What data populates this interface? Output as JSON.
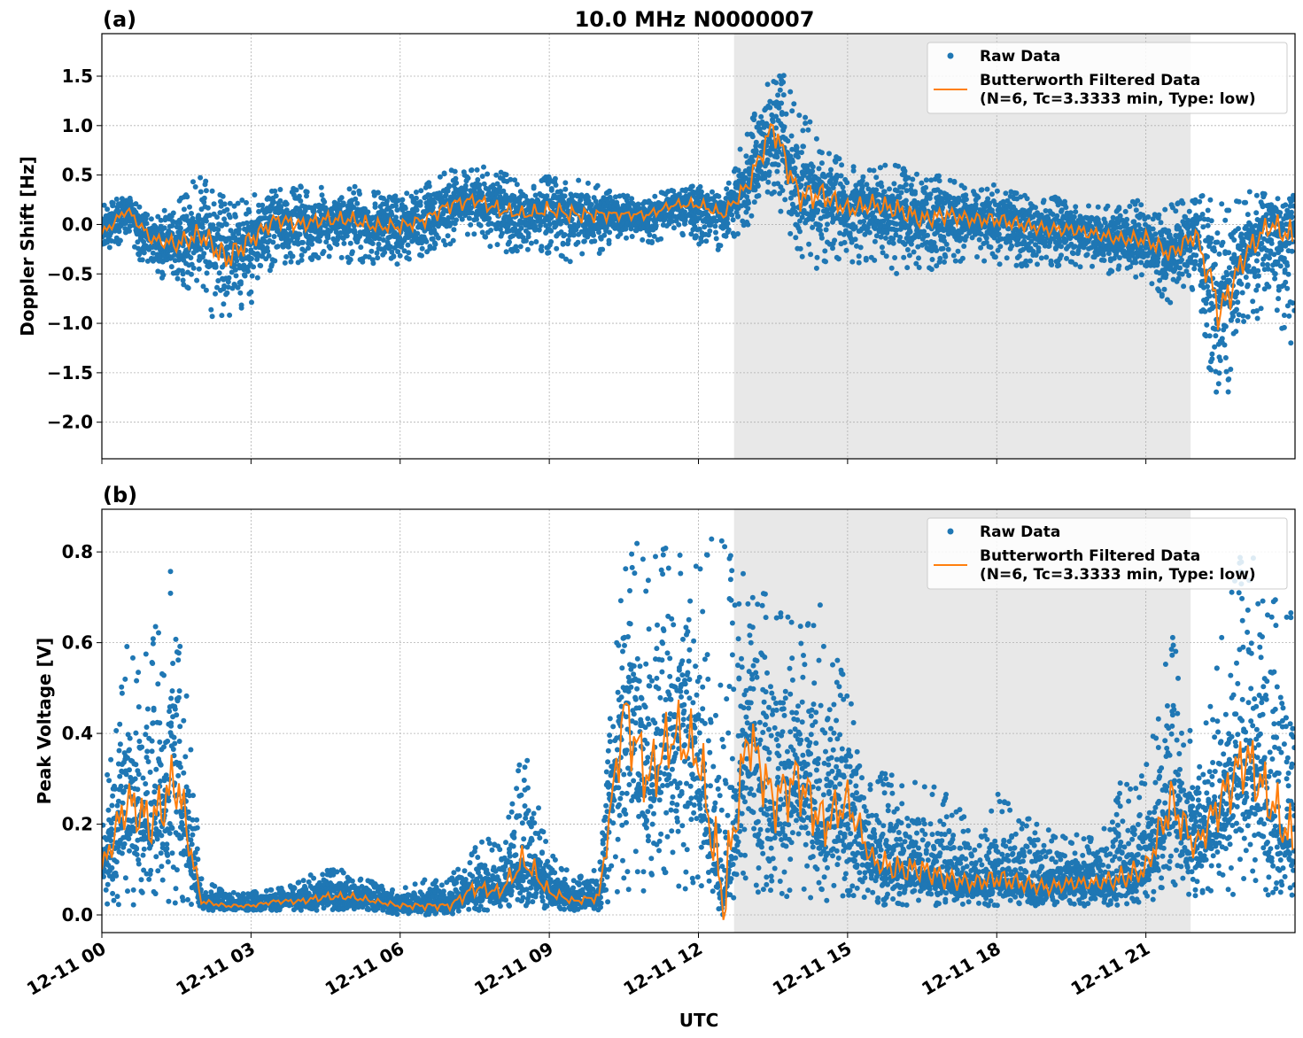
{
  "chart_data": [
    {
      "type": "scatter",
      "panel_label": "(a)",
      "title": "10.0 MHz N0000007",
      "xlabel": "",
      "ylabel": "Doppler Shift [Hz]",
      "ylim": [
        -2.37,
        1.93
      ],
      "xlim": [
        "12-11 00:00",
        "12-12 00:00"
      ],
      "yticks": [
        "1.5",
        "1.0",
        "0.5",
        "0.0",
        "−0.5",
        "−1.0",
        "−1.5",
        "−2.0"
      ],
      "ytick_values": [
        1.5,
        1.0,
        0.5,
        0.0,
        -0.5,
        -1.0,
        -1.5,
        -2.0
      ],
      "grid": true,
      "legend_position": "top-right",
      "shaded_interval": [
        "12-11 12:43",
        "12-11 21:54"
      ],
      "shade_color": "#e8e8e8",
      "legend": [
        "Raw Data",
        "Butterworth Filtered Data",
        "(N=6, Tc=3.3333 min, Type: low)"
      ],
      "x_hours": [
        0,
        0.5,
        1,
        1.5,
        2,
        2.5,
        3,
        3.5,
        4,
        4.5,
        5,
        5.5,
        6,
        6.5,
        7,
        7.5,
        8,
        8.5,
        9,
        9.5,
        10,
        10.5,
        11,
        11.5,
        12,
        12.5,
        13,
        13.5,
        14,
        14.5,
        15,
        15.5,
        16,
        16.5,
        17,
        17.5,
        18,
        18.5,
        19,
        19.5,
        20,
        20.5,
        21,
        21.5,
        22,
        22.5,
        23,
        23.5,
        24
      ],
      "series": [
        {
          "name": "Butterworth Filtered Data",
          "color": "#ff7f0e",
          "values": [
            -0.1,
            0.15,
            -0.15,
            -0.2,
            -0.1,
            -0.35,
            -0.15,
            0.05,
            0.0,
            0.05,
            0.05,
            -0.02,
            -0.02,
            0.05,
            0.2,
            0.25,
            0.15,
            0.1,
            0.15,
            0.1,
            0.1,
            0.1,
            0.1,
            0.2,
            0.2,
            0.1,
            0.4,
            1.0,
            0.3,
            0.3,
            0.15,
            0.2,
            0.15,
            0.05,
            0.1,
            0.05,
            0.05,
            0.0,
            -0.05,
            -0.05,
            -0.1,
            -0.15,
            -0.15,
            -0.3,
            -0.1,
            -0.9,
            -0.3,
            0.0,
            -0.15
          ]
        },
        {
          "name": "Raw Data",
          "color": "#1f77b4",
          "min": [
            -0.35,
            -0.2,
            -0.5,
            -0.6,
            -0.8,
            -1.1,
            -0.8,
            -0.4,
            -0.4,
            -0.35,
            -0.4,
            -0.4,
            -0.45,
            -0.3,
            -0.2,
            -0.1,
            -0.3,
            -0.3,
            -0.3,
            -0.4,
            -0.3,
            -0.15,
            -0.2,
            -0.1,
            -0.2,
            -0.3,
            0.0,
            0.3,
            -0.3,
            -0.5,
            -0.4,
            -0.4,
            -0.5,
            -0.5,
            -0.4,
            -0.35,
            -0.4,
            -0.45,
            -0.45,
            -0.4,
            -0.5,
            -0.5,
            -0.6,
            -0.8,
            -0.7,
            -2.1,
            -1.0,
            -0.9,
            -1.3
          ],
          "max": [
            0.2,
            0.3,
            0.1,
            0.3,
            0.5,
            0.3,
            0.3,
            0.4,
            0.4,
            0.4,
            0.4,
            0.35,
            0.3,
            0.4,
            0.6,
            0.6,
            0.55,
            0.4,
            0.5,
            0.5,
            0.4,
            0.3,
            0.3,
            0.35,
            0.4,
            0.3,
            1.0,
            1.7,
            1.3,
            0.8,
            0.6,
            0.6,
            0.6,
            0.5,
            0.5,
            0.4,
            0.4,
            0.3,
            0.3,
            0.25,
            0.2,
            0.2,
            0.3,
            0.2,
            0.3,
            0.3,
            0.35,
            0.35,
            0.3
          ]
        }
      ]
    },
    {
      "type": "scatter",
      "panel_label": "(b)",
      "title": "",
      "xlabel": "UTC",
      "ylabel": "Peak Voltage [V]",
      "ylim": [
        -0.039,
        0.894
      ],
      "xlim": [
        "12-11 00:00",
        "12-12 00:00"
      ],
      "yticks": [
        "0.8",
        "0.6",
        "0.4",
        "0.2",
        "0.0"
      ],
      "ytick_values": [
        0.8,
        0.6,
        0.4,
        0.2,
        0.0
      ],
      "xticks": [
        "12-11 00",
        "12-11 03",
        "12-11 06",
        "12-11 09",
        "12-11 12",
        "12-11 15",
        "12-11 18",
        "12-11 21"
      ],
      "xtick_hours": [
        0,
        3,
        6,
        9,
        12,
        15,
        18,
        21
      ],
      "grid": true,
      "legend_position": "top-right",
      "shaded_interval": [
        "12-11 12:43",
        "12-11 21:54"
      ],
      "shade_color": "#e8e8e8",
      "legend": [
        "Raw Data",
        "Butterworth Filtered Data",
        "(N=6, Tc=3.3333 min, Type: low)"
      ],
      "x_hours": [
        0,
        0.5,
        1,
        1.5,
        2,
        2.5,
        3,
        3.5,
        4,
        4.5,
        5,
        5.5,
        6,
        6.5,
        7,
        7.5,
        8,
        8.5,
        9,
        9.5,
        10,
        10.5,
        11,
        11.5,
        12,
        12.5,
        13,
        13.5,
        14,
        14.5,
        15,
        15.5,
        16,
        16.5,
        17,
        17.5,
        18,
        18.5,
        19,
        19.5,
        20,
        20.5,
        21,
        21.5,
        22,
        22.5,
        23,
        23.5,
        24
      ],
      "series": [
        {
          "name": "Butterworth Filtered Data",
          "color": "#ff7f0e",
          "values": [
            0.1,
            0.25,
            0.2,
            0.3,
            0.03,
            0.02,
            0.02,
            0.03,
            0.03,
            0.04,
            0.04,
            0.03,
            0.02,
            0.02,
            0.02,
            0.06,
            0.05,
            0.12,
            0.05,
            0.03,
            0.04,
            0.45,
            0.3,
            0.4,
            0.35,
            0.03,
            0.4,
            0.25,
            0.3,
            0.2,
            0.25,
            0.12,
            0.1,
            0.1,
            0.08,
            0.07,
            0.08,
            0.07,
            0.06,
            0.07,
            0.07,
            0.08,
            0.1,
            0.25,
            0.15,
            0.25,
            0.35,
            0.25,
            0.15
          ]
        },
        {
          "name": "Raw Data",
          "color": "#1f77b4",
          "min": [
            0.02,
            0.02,
            0.02,
            0.02,
            0.01,
            0.01,
            0.01,
            0.01,
            0.01,
            0.01,
            0.01,
            0.01,
            0.0,
            0.0,
            0.0,
            0.01,
            0.01,
            0.02,
            0.01,
            0.01,
            0.01,
            0.05,
            0.05,
            0.05,
            0.05,
            0.0,
            0.05,
            0.04,
            0.04,
            0.03,
            0.03,
            0.02,
            0.02,
            0.02,
            0.02,
            0.02,
            0.02,
            0.02,
            0.02,
            0.02,
            0.02,
            0.02,
            0.03,
            0.04,
            0.04,
            0.04,
            0.05,
            0.04,
            0.04
          ],
          "max": [
            0.25,
            0.6,
            0.6,
            0.83,
            0.08,
            0.05,
            0.05,
            0.06,
            0.08,
            0.1,
            0.1,
            0.07,
            0.06,
            0.08,
            0.08,
            0.19,
            0.15,
            0.38,
            0.15,
            0.08,
            0.12,
            0.83,
            0.83,
            0.8,
            0.83,
            0.83,
            0.75,
            0.7,
            0.72,
            0.68,
            0.5,
            0.3,
            0.34,
            0.3,
            0.28,
            0.2,
            0.27,
            0.22,
            0.2,
            0.18,
            0.18,
            0.3,
            0.33,
            0.64,
            0.35,
            0.6,
            0.85,
            0.7,
            0.72
          ]
        }
      ]
    }
  ]
}
